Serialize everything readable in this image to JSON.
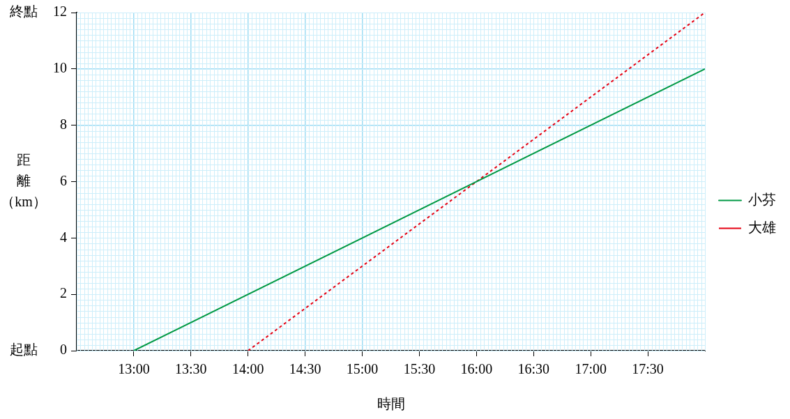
{
  "chart_data": {
    "type": "line",
    "xlabel": "時間",
    "ylabel": "距離（km）",
    "xlim": [
      12.5,
      18
    ],
    "ylim": [
      0,
      12
    ],
    "xticks": [
      {
        "value": 13,
        "label": "13:00"
      },
      {
        "value": 13.5,
        "label": "13:30"
      },
      {
        "value": 14,
        "label": "14:00"
      },
      {
        "value": 14.5,
        "label": "14:30"
      },
      {
        "value": 15,
        "label": "15:00"
      },
      {
        "value": 15.5,
        "label": "15:30"
      },
      {
        "value": 16,
        "label": "16:00"
      },
      {
        "value": 16.5,
        "label": "16:30"
      },
      {
        "value": 17,
        "label": "17:00"
      },
      {
        "value": 17.5,
        "label": "17:30"
      }
    ],
    "yticks": [
      0,
      2,
      4,
      6,
      8,
      10,
      12
    ],
    "series": [
      {
        "name": "小芬",
        "color": "#009944",
        "x": [
          13,
          18
        ],
        "values": [
          0,
          10
        ],
        "line_style": "solid"
      },
      {
        "name": "大雄",
        "color": "#e60012",
        "x": [
          14,
          18
        ],
        "values": [
          0,
          12
        ],
        "line_style": "dashed"
      }
    ],
    "annotations": [
      "起點",
      "終點"
    ],
    "grid": true,
    "legend": "right",
    "marker": "none"
  }
}
